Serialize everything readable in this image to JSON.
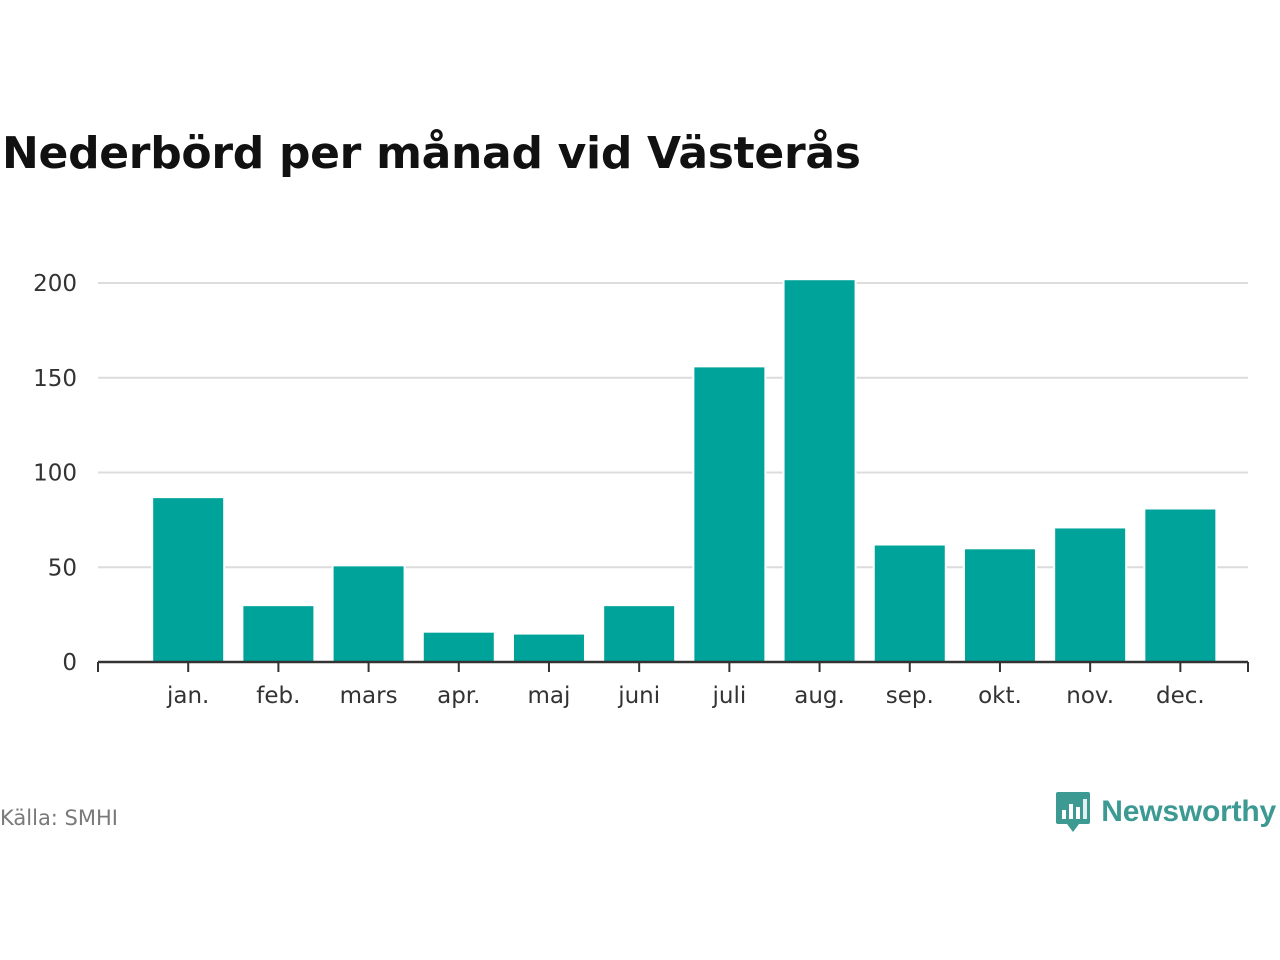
{
  "chart_data": {
    "type": "bar",
    "title": "Nederbörd per månad vid Västerås",
    "categories": [
      "jan.",
      "feb.",
      "mars",
      "apr.",
      "maj",
      "juni",
      "juli",
      "aug.",
      "sep.",
      "okt.",
      "nov.",
      "dec."
    ],
    "values": [
      87,
      30,
      51,
      16,
      15,
      30,
      156,
      202,
      62,
      60,
      71,
      81
    ],
    "ylim": [
      0,
      200
    ],
    "yticks": [
      "0",
      "50",
      "100",
      "150",
      "200"
    ],
    "ytick_values": [
      0,
      50,
      100,
      150,
      200
    ],
    "xlabel": "",
    "ylabel": "",
    "bar_color": "#00a39a",
    "grid": true
  },
  "footer": {
    "source": "Källa: SMHI",
    "brand": "Newsworthy",
    "brand_icon": "newsworthy-logo-icon",
    "brand_color": "#3c9a93"
  }
}
